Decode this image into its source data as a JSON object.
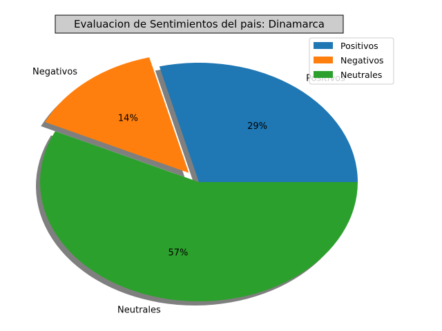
{
  "chart_data": {
    "type": "pie",
    "title": "Evaluacion de Sentimientos del pais: Dinamarca",
    "categories": [
      "Positivos",
      "Negativos",
      "Neutrales"
    ],
    "values": [
      29,
      14,
      57
    ],
    "percent_labels": [
      "29%",
      "14%",
      "57%"
    ],
    "colors": [
      "#1f77b4",
      "#ff7f0e",
      "#2ca02c"
    ],
    "exploded": [
      "Negativos"
    ],
    "shadow": true,
    "legend": {
      "position": "top-right",
      "entries": [
        "Positivos",
        "Negativos",
        "Neutrales"
      ]
    }
  }
}
